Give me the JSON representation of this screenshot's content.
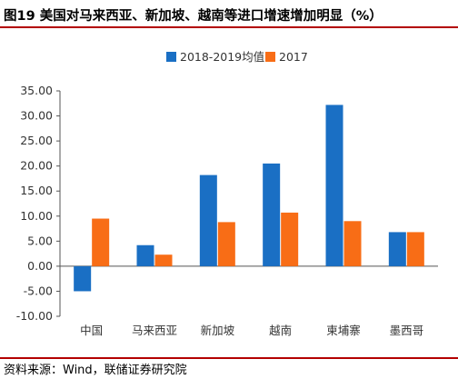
{
  "header": {
    "title": "图19 美国对马来西亚、新加坡、越南等进口增速增加明显（%）"
  },
  "footer": {
    "source": "资料来源：Wind，联储证券研究院"
  },
  "colors": {
    "series_a": "#1a6fc4",
    "series_b": "#f86d16",
    "accent_rule": "#b30000"
  },
  "chart_data": {
    "type": "bar",
    "title": "",
    "xlabel": "",
    "ylabel": "",
    "categories": [
      "中国",
      "马来西亚",
      "新加坡",
      "越南",
      "柬埔寨",
      "墨西哥"
    ],
    "series": [
      {
        "name": "2018-2019均值",
        "values": [
          -5.0,
          4.2,
          18.2,
          20.5,
          32.2,
          6.8
        ]
      },
      {
        "name": "2017",
        "values": [
          9.5,
          2.3,
          8.8,
          10.7,
          9.0,
          6.8
        ]
      }
    ],
    "ylim": [
      -10,
      35
    ],
    "yticks": [
      "35.00",
      "30.00",
      "25.00",
      "20.00",
      "15.00",
      "10.00",
      "5.00",
      "0.00",
      "-5.00",
      "-10.00"
    ],
    "grid": false,
    "legend": "top-center"
  }
}
